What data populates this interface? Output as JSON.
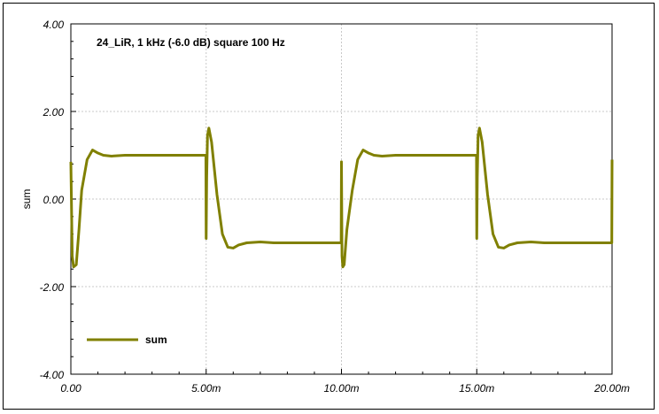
{
  "chart_data": {
    "type": "line",
    "title": "24_LiR, 1 kHz (-6.0 dB)   square 100 Hz",
    "xlabel": "",
    "ylabel": "sum",
    "xlim": [
      0,
      0.02
    ],
    "ylim": [
      -4,
      4
    ],
    "grid": true,
    "legend_position": "bottom-left",
    "x_ticks": [
      "0.00",
      "5.00m",
      "10.00m",
      "15.00m",
      "20.00m"
    ],
    "y_ticks": [
      "4.00",
      "2.00",
      "0.00",
      "-2.00",
      "-4.00"
    ],
    "series": [
      {
        "name": "sum",
        "color": "#808000",
        "x": [
          0,
          5e-05,
          0.0001,
          0.0002,
          0.0003,
          0.0004,
          0.0006,
          0.0008,
          0.001,
          0.0012,
          0.0015,
          0.002,
          0.0025,
          0.003,
          0.004,
          0.0049,
          0.00499,
          0.005,
          0.00502,
          0.00505,
          0.0051,
          0.0052,
          0.0054,
          0.0056,
          0.0058,
          0.006,
          0.0062,
          0.0065,
          0.007,
          0.0075,
          0.008,
          0.009,
          0.0099,
          0.00999,
          0.01,
          0.01002,
          0.01005,
          0.0101,
          0.0102,
          0.0104,
          0.0106,
          0.0108,
          0.011,
          0.0112,
          0.0115,
          0.012,
          0.0125,
          0.013,
          0.014,
          0.0149,
          0.01499,
          0.015,
          0.01502,
          0.01505,
          0.0151,
          0.0152,
          0.0154,
          0.0156,
          0.0158,
          0.016,
          0.0162,
          0.0165,
          0.017,
          0.0175,
          0.018,
          0.019,
          0.01999,
          0.02
        ],
        "y": [
          0.85,
          -1.3,
          -1.55,
          -1.5,
          -0.7,
          0.2,
          0.9,
          1.12,
          1.05,
          1.0,
          0.98,
          1.0,
          1.0,
          1.0,
          1.0,
          1.0,
          1.0,
          -0.9,
          0.5,
          1.45,
          1.62,
          1.3,
          0.1,
          -0.8,
          -1.1,
          -1.12,
          -1.05,
          -1.0,
          -0.98,
          -1.0,
          -1.0,
          -1.0,
          -1.0,
          -1.0,
          0.85,
          -1.3,
          -1.55,
          -1.5,
          -0.7,
          0.2,
          0.9,
          1.12,
          1.05,
          1.0,
          0.98,
          1.0,
          1.0,
          1.0,
          1.0,
          1.0,
          1.0,
          -0.9,
          0.5,
          1.45,
          1.62,
          1.3,
          0.1,
          -0.8,
          -1.1,
          -1.12,
          -1.05,
          -1.0,
          -0.98,
          -1.0,
          -1.0,
          -1.0,
          -1.0,
          0.9
        ]
      }
    ]
  }
}
